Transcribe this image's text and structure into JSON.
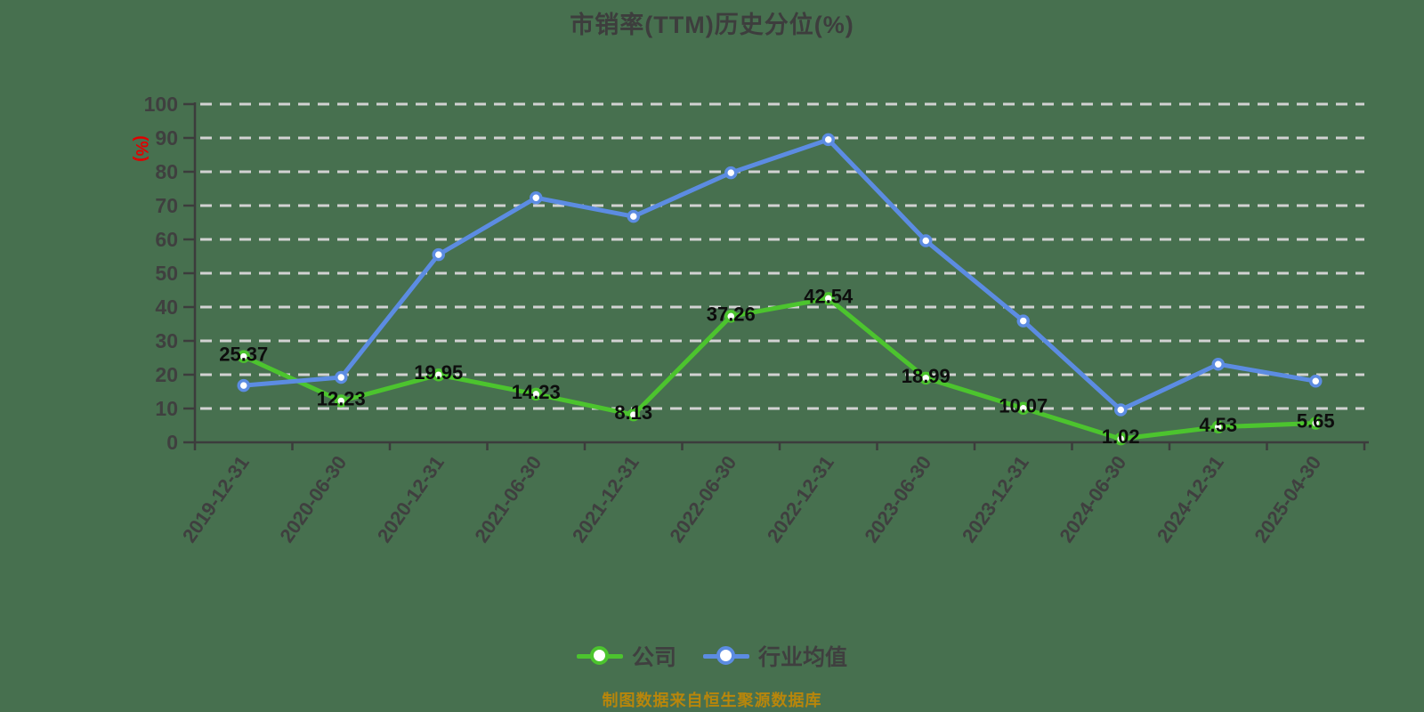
{
  "title": {
    "text": "市销率(TTM)历史分位(%)"
  },
  "footer": {
    "text": "制图数据来自恒生聚源数据库"
  },
  "colors": {
    "background": "#47704f",
    "title": "#3d3d3d",
    "axis": "#3c3c3c",
    "axis_label": "#3f3f3f",
    "grid": "#d2d2d2",
    "unit_label": "#e00000",
    "value_label": "#0d0d0d",
    "footer": "#b8860b",
    "company_series": "#4cc42e",
    "industry_series": "#5c8ce2"
  },
  "chart_data": {
    "type": "line",
    "title": "市销率(TTM)历史分位(%)",
    "xlabel": "",
    "ylabel": "(%)",
    "ylim": [
      0,
      100
    ],
    "yticks": [
      0,
      10,
      20,
      30,
      40,
      50,
      60,
      70,
      80,
      90,
      100
    ],
    "grid": true,
    "grid_style": "dashed",
    "legend_position": "bottom",
    "categories": [
      "2019-12-31",
      "2020-06-30",
      "2020-12-31",
      "2021-06-30",
      "2021-12-31",
      "2022-06-30",
      "2022-12-31",
      "2023-06-30",
      "2023-12-31",
      "2024-06-30",
      "2024-12-31",
      "2025-04-30"
    ],
    "series": [
      {
        "key": "company",
        "name": "公司",
        "color": "#4cc42e",
        "show_point_labels": true,
        "values": [
          25.37,
          12.23,
          19.95,
          14.23,
          8.13,
          37.26,
          42.54,
          18.99,
          10.07,
          1.02,
          4.53,
          5.65
        ],
        "point_labels": [
          "25.37",
          "12.23",
          "19.95",
          "14.23",
          "8.13",
          "37.26",
          "42.54",
          "18.99",
          "10.07",
          "1.02",
          "4.53",
          "5.65"
        ]
      },
      {
        "key": "industry",
        "name": "行业均值",
        "color": "#5c8ce2",
        "show_point_labels": false,
        "values_estimated_from_gridlines": true,
        "values": [
          16.8,
          19.2,
          55.5,
          72.3,
          66.8,
          79.7,
          89.5,
          59.6,
          35.9,
          9.6,
          23.1,
          18.1
        ]
      }
    ]
  }
}
